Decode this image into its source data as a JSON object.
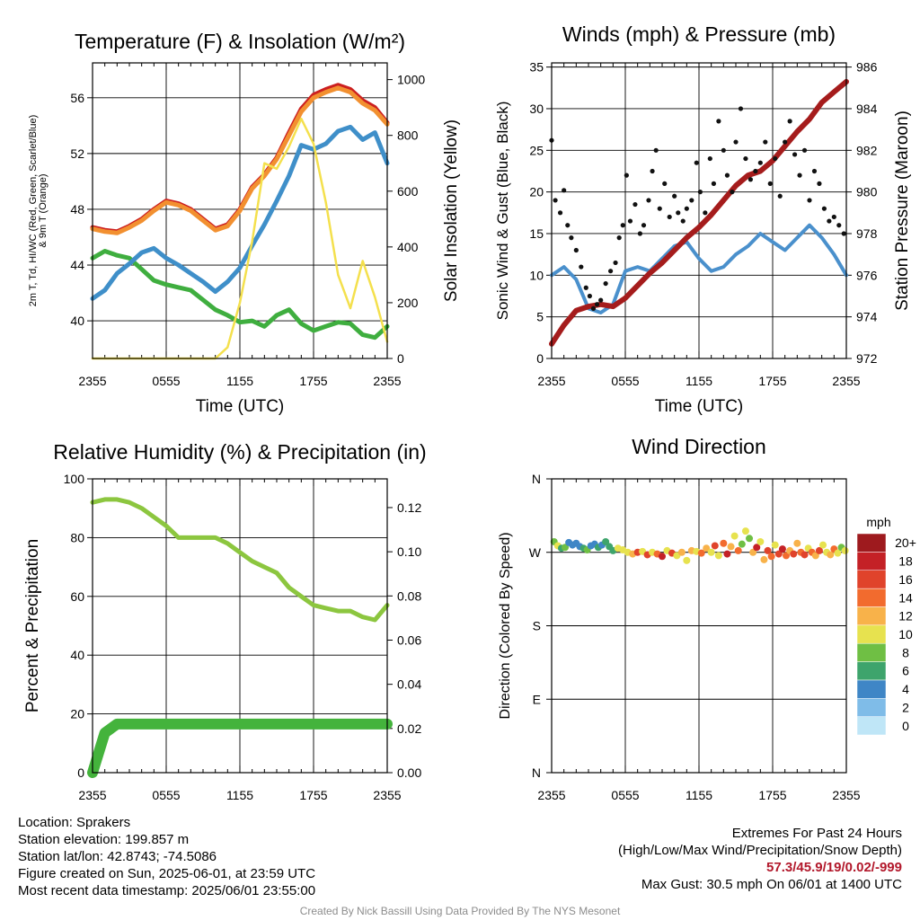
{
  "chart_data": [
    {
      "type": "line",
      "title": "Temperature (F) & Insolation (W/m²)",
      "xlabel": "Time (UTC)",
      "ylabel": "2m T, Td, HI/WC (Red, Green, Scarlet/Blue) & 9m T (Orange)",
      "ylabel_right": "Solar Insolation (Yellow)",
      "x_ticks": [
        "2355",
        "0555",
        "1155",
        "1755",
        "2355"
      ],
      "y_ticks": [
        40,
        44,
        48,
        52,
        56
      ],
      "y_right_ticks": [
        0,
        200,
        400,
        600,
        800,
        1000
      ],
      "ylim": [
        37.3,
        58.5
      ],
      "ylim_right": [
        0,
        1060
      ],
      "x_hours": [
        0,
        1,
        2,
        3,
        4,
        5,
        6,
        7,
        8,
        9,
        10,
        11,
        12,
        13,
        14,
        15,
        16,
        17,
        18,
        19,
        20,
        21,
        22,
        23,
        24
      ],
      "series": [
        {
          "name": "2m T",
          "color": "#cc1f1f",
          "values": [
            46.7,
            46.5,
            46.4,
            46.8,
            47.3,
            48.0,
            48.6,
            48.4,
            48.0,
            47.3,
            46.6,
            46.9,
            48.0,
            49.6,
            50.5,
            51.7,
            53.5,
            55.2,
            56.2,
            56.6,
            56.9,
            56.6,
            55.8,
            55.3,
            54.2
          ]
        },
        {
          "name": "9m T",
          "color": "#f29030",
          "values": [
            46.6,
            46.4,
            46.3,
            46.7,
            47.2,
            47.9,
            48.5,
            48.3,
            47.9,
            47.2,
            46.5,
            46.8,
            47.9,
            49.5,
            50.4,
            51.6,
            53.3,
            55.0,
            56.0,
            56.4,
            56.7,
            56.4,
            55.6,
            55.1,
            54.1
          ]
        },
        {
          "name": "Td",
          "color": "#3fae3f",
          "values": [
            44.5,
            45.0,
            44.7,
            44.5,
            43.7,
            42.9,
            42.6,
            42.4,
            42.2,
            41.5,
            40.8,
            40.4,
            39.9,
            40.0,
            39.6,
            40.4,
            40.8,
            39.8,
            39.3,
            39.6,
            39.9,
            39.8,
            39.0,
            38.8,
            39.6
          ]
        },
        {
          "name": "HI/WC",
          "color": "#3f8fc9",
          "values": [
            41.6,
            42.2,
            43.4,
            44.1,
            44.9,
            45.2,
            44.5,
            44.0,
            43.4,
            42.8,
            42.1,
            42.8,
            43.8,
            45.4,
            46.9,
            48.6,
            50.4,
            52.6,
            52.3,
            52.7,
            53.6,
            53.9,
            53.0,
            53.5,
            51.3
          ]
        },
        {
          "name": "Insolation",
          "color": "#f4e04d",
          "axis": "right",
          "values": [
            0,
            0,
            0,
            0,
            0,
            0,
            0,
            0,
            0,
            0,
            0,
            40,
            200,
            420,
            700,
            680,
            760,
            860,
            770,
            560,
            300,
            180,
            350,
            220,
            60
          ]
        }
      ]
    },
    {
      "type": "line",
      "title": "Winds (mph) & Pressure (mb)",
      "xlabel": "Time (UTC)",
      "ylabel": "Sonic Wind & Gust (Blue, Black)",
      "ylabel_right": "Station Pressure (Maroon)",
      "x_ticks": [
        "2355",
        "0555",
        "1155",
        "1755",
        "2355"
      ],
      "y_ticks": [
        0,
        5,
        10,
        15,
        20,
        25,
        30,
        35
      ],
      "y_right_ticks": [
        972,
        974,
        976,
        978,
        980,
        982,
        984,
        986
      ],
      "ylim": [
        0,
        35.5
      ],
      "ylim_right": [
        972,
        986.2
      ],
      "x_hours": [
        0,
        1,
        2,
        3,
        4,
        5,
        6,
        7,
        8,
        9,
        10,
        11,
        12,
        13,
        14,
        15,
        16,
        17,
        18,
        19,
        20,
        21,
        22,
        23,
        24
      ],
      "series": [
        {
          "name": "Sonic Wind",
          "color": "#4a90cc",
          "values": [
            10.0,
            11.0,
            9.5,
            6.0,
            5.5,
            6.5,
            10.5,
            11.0,
            10.5,
            12.0,
            13.5,
            14.0,
            12.0,
            10.5,
            11.0,
            12.5,
            13.5,
            15.0,
            14.0,
            13.0,
            14.5,
            16.0,
            14.5,
            12.5,
            10.0
          ]
        },
        {
          "name": "Pressure",
          "color": "#a51c1c",
          "axis": "right",
          "values": [
            972.7,
            973.6,
            974.3,
            974.5,
            974.6,
            974.5,
            974.9,
            975.5,
            976.1,
            976.6,
            977.2,
            977.8,
            978.3,
            978.9,
            979.6,
            980.3,
            980.8,
            981.0,
            981.5,
            982.2,
            982.9,
            983.5,
            984.3,
            984.8,
            985.3
          ]
        },
        {
          "name": "Gust",
          "color": "#111111",
          "points": [
            [
              0,
              26.2
            ],
            [
              0.3,
              19.0
            ],
            [
              0.7,
              17.5
            ],
            [
              1.0,
              20.2
            ],
            [
              1.3,
              16.0
            ],
            [
              1.6,
              14.5
            ],
            [
              2.0,
              13.0
            ],
            [
              2.4,
              11.0
            ],
            [
              2.8,
              8.5
            ],
            [
              3.1,
              7.5
            ],
            [
              3.4,
              6.0
            ],
            [
              3.7,
              6.5
            ],
            [
              4.0,
              7.0
            ],
            [
              4.4,
              9.0
            ],
            [
              4.8,
              10.5
            ],
            [
              5.2,
              11.5
            ],
            [
              5.5,
              14.5
            ],
            [
              5.8,
              16.0
            ],
            [
              6.1,
              22.0
            ],
            [
              6.4,
              16.5
            ],
            [
              6.8,
              18.5
            ],
            [
              7.2,
              15.0
            ],
            [
              7.5,
              16.0
            ],
            [
              7.9,
              19.0
            ],
            [
              8.2,
              22.5
            ],
            [
              8.5,
              25.0
            ],
            [
              8.8,
              18.0
            ],
            [
              9.2,
              21.0
            ],
            [
              9.6,
              17.0
            ],
            [
              10.0,
              19.5
            ],
            [
              10.3,
              17.5
            ],
            [
              10.7,
              16.5
            ],
            [
              11.0,
              18.0
            ],
            [
              11.4,
              19.0
            ],
            [
              11.8,
              23.5
            ],
            [
              12.1,
              20.0
            ],
            [
              12.5,
              17.5
            ],
            [
              12.9,
              24.0
            ],
            [
              13.2,
              21.0
            ],
            [
              13.6,
              28.5
            ],
            [
              14.0,
              25.0
            ],
            [
              14.3,
              22.0
            ],
            [
              14.7,
              20.0
            ],
            [
              15.0,
              26.0
            ],
            [
              15.4,
              30.0
            ],
            [
              15.8,
              24.0
            ],
            [
              16.2,
              21.5
            ],
            [
              16.6,
              22.5
            ],
            [
              17.0,
              23.5
            ],
            [
              17.4,
              26.0
            ],
            [
              17.8,
              21.0
            ],
            [
              18.2,
              24.0
            ],
            [
              18.6,
              19.5
            ],
            [
              19.0,
              26.0
            ],
            [
              19.4,
              28.5
            ],
            [
              19.8,
              24.5
            ],
            [
              20.2,
              22.0
            ],
            [
              20.6,
              25.0
            ],
            [
              21.0,
              19.0
            ],
            [
              21.4,
              22.5
            ],
            [
              21.8,
              21.0
            ],
            [
              22.2,
              18.0
            ],
            [
              22.6,
              16.5
            ],
            [
              23.0,
              17.0
            ],
            [
              23.4,
              16.0
            ],
            [
              23.8,
              15.0
            ]
          ]
        }
      ]
    },
    {
      "type": "line",
      "title": "Relative Humidity (%) & Precipitation (in)",
      "ylabel": "Percent & Precipitation",
      "x_ticks": [
        "2355",
        "0555",
        "1155",
        "1755",
        "2355"
      ],
      "y_ticks": [
        0,
        20,
        40,
        60,
        80,
        100
      ],
      "y_right_ticks": [
        "0.00",
        "0.02",
        "0.04",
        "0.06",
        "0.08",
        "0.10",
        "0.12"
      ],
      "ylim": [
        0,
        100
      ],
      "ylim_right": [
        0,
        0.133
      ],
      "x_hours": [
        0,
        1,
        2,
        3,
        4,
        5,
        6,
        7,
        8,
        9,
        10,
        11,
        12,
        13,
        14,
        15,
        16,
        17,
        18,
        19,
        20,
        21,
        22,
        23,
        24
      ],
      "series": [
        {
          "name": "RH",
          "color": "#8cc63f",
          "values": [
            92,
            93,
            93,
            92,
            90,
            87,
            84,
            80,
            80,
            80,
            80,
            78,
            75,
            72,
            70,
            68,
            63,
            60,
            57,
            56,
            55,
            55,
            53,
            52,
            57
          ]
        },
        {
          "name": "Precipitation",
          "color": "#44b33c",
          "axis": "right",
          "values": [
            0.0,
            0.018,
            0.022,
            0.022,
            0.022,
            0.022,
            0.022,
            0.022,
            0.022,
            0.022,
            0.022,
            0.022,
            0.022,
            0.022,
            0.022,
            0.022,
            0.022,
            0.022,
            0.022,
            0.022,
            0.022,
            0.022,
            0.022,
            0.022,
            0.022
          ]
        }
      ]
    },
    {
      "type": "scatter",
      "title": "Wind Direction",
      "ylabel": "Direction (Colored By Speed)",
      "x_ticks": [
        "2355",
        "0555",
        "1155",
        "1755",
        "2355"
      ],
      "y_ticks": [
        "N",
        "E",
        "S",
        "W",
        "N"
      ],
      "ylim": [
        0,
        360
      ],
      "colorbar_title": "mph",
      "colorbar_labels": [
        "0",
        "2",
        "4",
        "6",
        "8",
        "10",
        "12",
        "14",
        "16",
        "18",
        "20+"
      ],
      "colorbar_colors": [
        "#bfe6f7",
        "#7fbce8",
        "#3f86c6",
        "#3ea46c",
        "#6fbf44",
        "#e7e24f",
        "#f8b24a",
        "#f26b2e",
        "#e0432b",
        "#c42126",
        "#9e1a1e"
      ],
      "points": [
        [
          0.2,
          283,
          8
        ],
        [
          0.5,
          278,
          10
        ],
        [
          0.8,
          275,
          6
        ],
        [
          1.1,
          276,
          8
        ],
        [
          1.4,
          282,
          4
        ],
        [
          1.7,
          279,
          4
        ],
        [
          2.0,
          281,
          4
        ],
        [
          2.3,
          277,
          4
        ],
        [
          2.6,
          275,
          6
        ],
        [
          2.9,
          273,
          8
        ],
        [
          3.2,
          278,
          4
        ],
        [
          3.5,
          280,
          4
        ],
        [
          3.8,
          276,
          6
        ],
        [
          4.1,
          279,
          4
        ],
        [
          4.4,
          283,
          6
        ],
        [
          4.7,
          277,
          6
        ],
        [
          5.0,
          272,
          6
        ],
        [
          5.4,
          275,
          10
        ],
        [
          5.8,
          273,
          10
        ],
        [
          6.2,
          270,
          10
        ],
        [
          6.6,
          268,
          12
        ],
        [
          7.0,
          270,
          16
        ],
        [
          7.4,
          271,
          10
        ],
        [
          7.8,
          267,
          16
        ],
        [
          8.2,
          270,
          10
        ],
        [
          8.6,
          268,
          14
        ],
        [
          9.0,
          265,
          18
        ],
        [
          9.4,
          272,
          10
        ],
        [
          9.8,
          269,
          16
        ],
        [
          10.2,
          266,
          10
        ],
        [
          10.6,
          270,
          12
        ],
        [
          11.0,
          260,
          10
        ],
        [
          11.4,
          272,
          12
        ],
        [
          11.8,
          271,
          10
        ],
        [
          12.2,
          269,
          14
        ],
        [
          12.6,
          275,
          12
        ],
        [
          13.0,
          270,
          10
        ],
        [
          13.3,
          278,
          16
        ],
        [
          13.6,
          266,
          10
        ],
        [
          14.0,
          281,
          14
        ],
        [
          14.3,
          268,
          18
        ],
        [
          14.6,
          277,
          12
        ],
        [
          14.9,
          290,
          10
        ],
        [
          15.2,
          272,
          14
        ],
        [
          15.5,
          280,
          8
        ],
        [
          15.8,
          296,
          10
        ],
        [
          16.1,
          287,
          8
        ],
        [
          16.4,
          270,
          12
        ],
        [
          16.7,
          276,
          18
        ],
        [
          17.0,
          283,
          10
        ],
        [
          17.3,
          261,
          12
        ],
        [
          17.6,
          272,
          16
        ],
        [
          17.9,
          265,
          14
        ],
        [
          18.2,
          279,
          10
        ],
        [
          18.5,
          268,
          16
        ],
        [
          18.8,
          274,
          18
        ],
        [
          19.1,
          266,
          14
        ],
        [
          19.4,
          272,
          12
        ],
        [
          19.7,
          268,
          16
        ],
        [
          20.0,
          281,
          12
        ],
        [
          20.3,
          270,
          14
        ],
        [
          20.6,
          267,
          16
        ],
        [
          20.9,
          275,
          10
        ],
        [
          21.2,
          270,
          14
        ],
        [
          21.5,
          266,
          12
        ],
        [
          21.8,
          272,
          16
        ],
        [
          22.1,
          279,
          10
        ],
        [
          22.4,
          270,
          10
        ],
        [
          22.7,
          267,
          12
        ],
        [
          23.0,
          274,
          14
        ],
        [
          23.3,
          269,
          10
        ],
        [
          23.6,
          276,
          8
        ],
        [
          23.9,
          272,
          10
        ]
      ]
    }
  ],
  "info_left": {
    "location": "Location: Sprakers",
    "elevation": "Station elevation: 199.857 m",
    "latlon": "Station lat/lon: 42.8743; -74.5086",
    "created": "Figure created on Sun, 2025-06-01, at 23:59 UTC",
    "recent": "Most recent data timestamp: 2025/06/01 23:55:00"
  },
  "info_right": {
    "heading": "Extremes For Past 24 Hours",
    "legend": "(High/Low/Max Wind/Precipitation/Snow Depth)",
    "values": "57.3/45.9/19/0.02/-999",
    "gust": "Max Gust: 30.5 mph On 06/01 at 1400 UTC"
  },
  "credit": "Created By Nick Bassill Using Data Provided By The NYS Mesonet"
}
